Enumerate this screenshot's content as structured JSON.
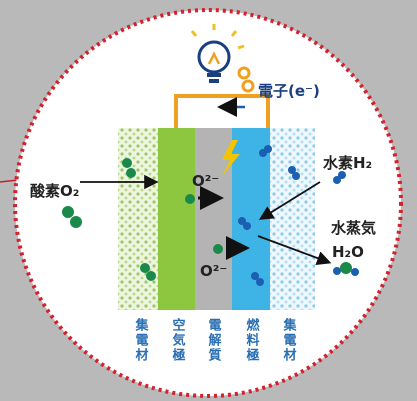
{
  "labels": {
    "electron": "電子(e⁻)",
    "oxygen": "酸素O₂",
    "hydrogen": "水素H₂",
    "steam_title": "水蒸気",
    "steam_formula": "H₂O",
    "oxide_ion_top": "O²⁻",
    "oxide_ion_bottom": "O²⁻"
  },
  "layers": [
    "集電材",
    "空気極",
    "電解質",
    "燃料極",
    "集電材"
  ]
}
